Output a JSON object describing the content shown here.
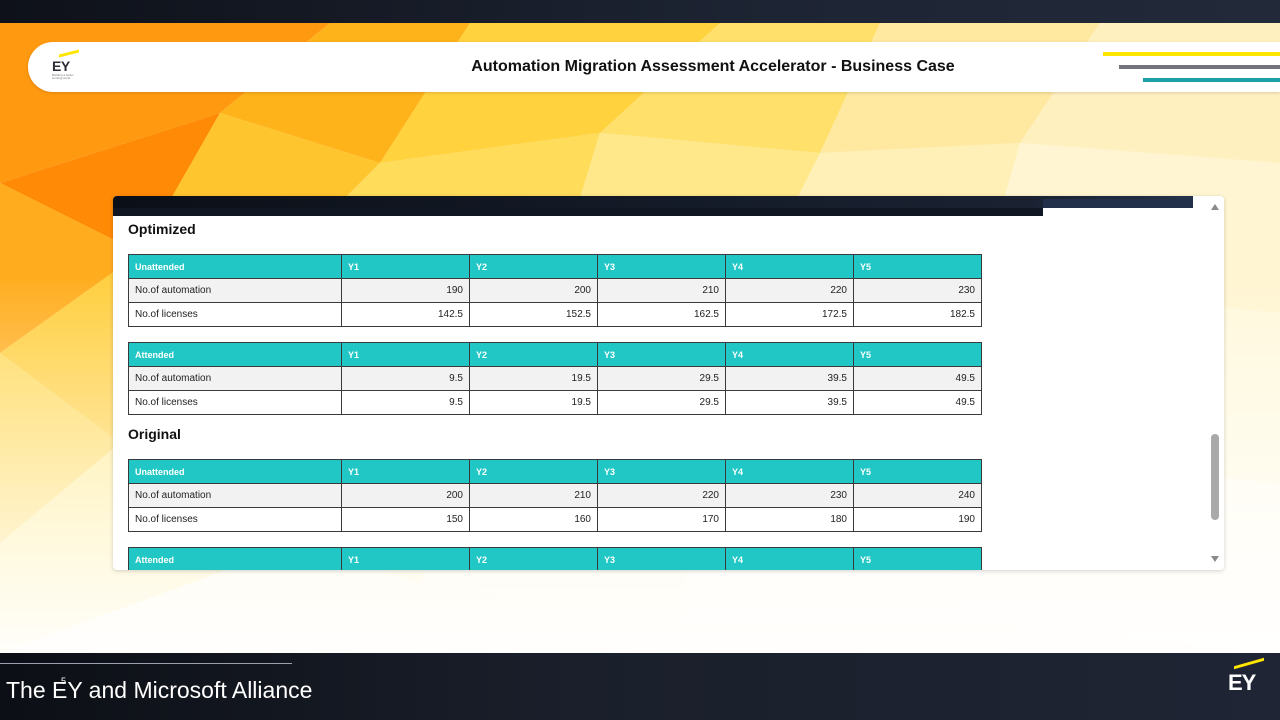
{
  "header": {
    "logo_text": "EY",
    "logo_tagline": "Building a better working world",
    "title": "Automation Migration Assessment Accelerator - Business Case"
  },
  "sections": {
    "optimized": {
      "title": "Optimized",
      "unattended": {
        "columns": [
          "Unattended",
          "Y1",
          "Y2",
          "Y3",
          "Y4",
          "Y5"
        ],
        "rows": [
          {
            "label": "No.of automation",
            "values": [
              "190",
              "200",
              "210",
              "220",
              "230"
            ]
          },
          {
            "label": "No.of licenses",
            "values": [
              "142.5",
              "152.5",
              "162.5",
              "172.5",
              "182.5"
            ]
          }
        ]
      },
      "attended": {
        "columns": [
          "Attended",
          "Y1",
          "Y2",
          "Y3",
          "Y4",
          "Y5"
        ],
        "rows": [
          {
            "label": "No.of automation",
            "values": [
              "9.5",
              "19.5",
              "29.5",
              "39.5",
              "49.5"
            ]
          },
          {
            "label": "No.of licenses",
            "values": [
              "9.5",
              "19.5",
              "29.5",
              "39.5",
              "49.5"
            ]
          }
        ]
      }
    },
    "original": {
      "title": "Original",
      "unattended": {
        "columns": [
          "Unattended",
          "Y1",
          "Y2",
          "Y3",
          "Y4",
          "Y5"
        ],
        "rows": [
          {
            "label": "No.of automation",
            "values": [
              "200",
              "210",
              "220",
              "230",
              "240"
            ]
          },
          {
            "label": "No.of licenses",
            "values": [
              "150",
              "160",
              "170",
              "180",
              "190"
            ]
          }
        ]
      },
      "attended": {
        "columns": [
          "Attended",
          "Y1",
          "Y2",
          "Y3",
          "Y4",
          "Y5"
        ],
        "rows": []
      }
    }
  },
  "footer": {
    "text": "The EY and Microsoft Alliance",
    "slide_number": "5",
    "logo_text": "EY"
  },
  "colors": {
    "table_header": "#21c7c5",
    "ey_yellow": "#ffe600",
    "ey_gray": "#747480",
    "accent_teal": "#1f9fa8"
  }
}
